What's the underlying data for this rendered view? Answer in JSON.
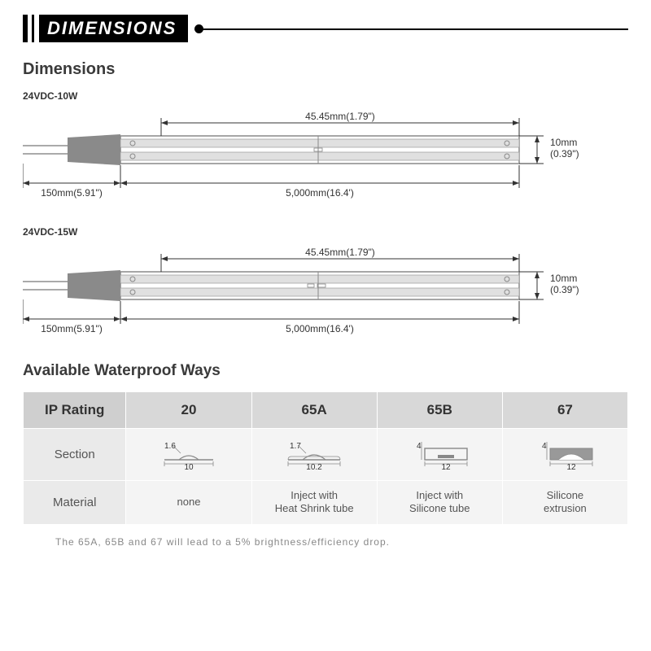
{
  "header": {
    "title": "DIMENSIONS"
  },
  "dimensions_section": {
    "title": "Dimensions",
    "variants": [
      {
        "label": "24VDC-10W",
        "top_dim": "45.45mm(1.79\")",
        "right_dim_a": "10mm",
        "right_dim_b": "(0.39\")",
        "bottom_left_dim": "150mm(5.91\")",
        "bottom_right_dim": "5,000mm(16.4')"
      },
      {
        "label": "24VDC-15W",
        "top_dim": "45.45mm(1.79\")",
        "right_dim_a": "10mm",
        "right_dim_b": "(0.39\")",
        "bottom_left_dim": "150mm(5.91\")",
        "bottom_right_dim": "5,000mm(16.4')"
      }
    ]
  },
  "waterproof_section": {
    "title": "Available Waterproof Ways",
    "columns": [
      "IP Rating",
      "20",
      "65A",
      "65B",
      "67"
    ],
    "rows": {
      "section_label": "Section",
      "material_label": "Material",
      "sections": [
        {
          "h": "1.6",
          "w": "10"
        },
        {
          "h": "1.7",
          "w": "10.2"
        },
        {
          "h": "4",
          "w": "12"
        },
        {
          "h": "4",
          "w": "12"
        }
      ],
      "materials": [
        "none",
        "Inject with\nHeat Shrink tube",
        "Inject with\nSilicone tube",
        "Silicone\nextrusion"
      ]
    },
    "footnote": "The 65A, 65B and 67 will lead to a 5% brightness/efficiency drop."
  },
  "colors": {
    "black": "#000000",
    "grey_dark": "#808080",
    "grey_mid": "#b0b0b0",
    "grey_light": "#d0d0d0",
    "grey_bg": "#f4f4f4"
  }
}
